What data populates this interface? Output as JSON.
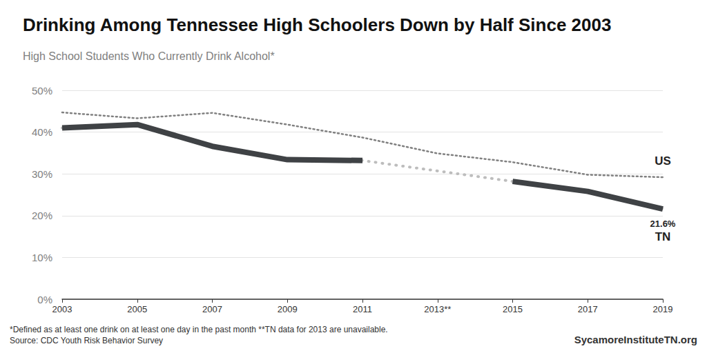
{
  "chart_data": {
    "type": "line",
    "title": "Drinking Among Tennessee High Schoolers Down by Half Since 2003",
    "subtitle": "High School Students Who Currently Drink Alcohol*",
    "categories": [
      "2003",
      "2005",
      "2007",
      "2009",
      "2011",
      "2013**",
      "2015",
      "2017",
      "2019"
    ],
    "series": [
      {
        "name": "US",
        "color": "#808080",
        "line_style": "dotted",
        "values": [
          44.7,
          43.3,
          44.6,
          41.8,
          38.7,
          34.9,
          32.8,
          29.8,
          29.2
        ]
      },
      {
        "name": "TN",
        "color": "#3f4245",
        "line_style": "solid",
        "values": [
          41.0,
          41.8,
          36.6,
          33.4,
          33.2,
          null,
          28.2,
          25.8,
          21.6
        ],
        "value_labels": [
          null,
          null,
          null,
          null,
          null,
          null,
          null,
          null,
          "21.6%"
        ]
      }
    ],
    "ylim": [
      0,
      50
    ],
    "yticks": [
      {
        "value": 0,
        "label": "0%"
      },
      {
        "value": 10,
        "label": "10%"
      },
      {
        "value": 20,
        "label": "20%"
      },
      {
        "value": 30,
        "label": "30%"
      },
      {
        "value": 40,
        "label": "40%"
      },
      {
        "value": 50,
        "label": "50%"
      }
    ],
    "grid": true,
    "data_labels": true,
    "notes": [
      "*Defined as at least one drink on at least one day in the past month **TN data for 2013 are unavailable."
    ],
    "source": "Source: CDC Youth Risk Behavior Survey",
    "credit": "SycamoreInstituteTN.org"
  }
}
